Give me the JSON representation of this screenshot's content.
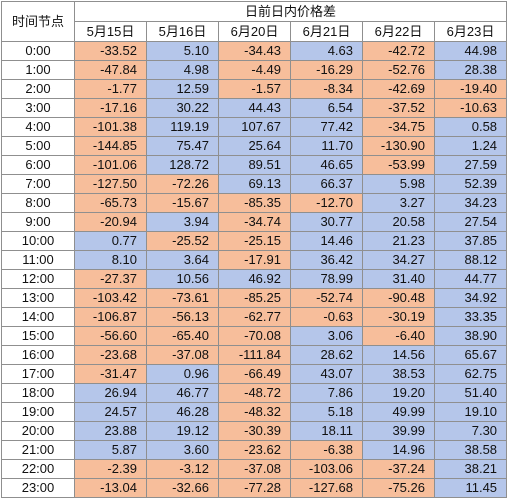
{
  "header": {
    "time_label": "时间节点",
    "group_title": "日前日内价格差",
    "dates": [
      "5月15日",
      "5月16日",
      "6月20日",
      "6月21日",
      "6月22日",
      "6月23日"
    ]
  },
  "colors": {
    "negative": "#f7be9b",
    "positive": "#b5c6ea",
    "grid": "#8f8f8f"
  },
  "rows": [
    {
      "time": "0:00",
      "values": [
        "-33.52",
        "5.10",
        "-34.43",
        "4.63",
        "-42.72",
        "44.98"
      ]
    },
    {
      "time": "1:00",
      "values": [
        "-47.84",
        "4.98",
        "-4.49",
        "-16.29",
        "-52.76",
        "28.38"
      ]
    },
    {
      "time": "2:00",
      "values": [
        "-1.77",
        "12.59",
        "-1.57",
        "-8.34",
        "-42.69",
        "-19.40"
      ]
    },
    {
      "time": "3:00",
      "values": [
        "-17.16",
        "30.22",
        "44.43",
        "6.54",
        "-37.52",
        "-10.63"
      ]
    },
    {
      "time": "4:00",
      "values": [
        "-101.38",
        "119.19",
        "107.67",
        "77.42",
        "-34.75",
        "0.58"
      ]
    },
    {
      "time": "5:00",
      "values": [
        "-144.85",
        "75.47",
        "25.64",
        "11.70",
        "-130.90",
        "1.24"
      ]
    },
    {
      "time": "6:00",
      "values": [
        "-101.06",
        "128.72",
        "89.51",
        "46.65",
        "-53.99",
        "27.59"
      ]
    },
    {
      "time": "7:00",
      "values": [
        "-127.50",
        "-72.26",
        "69.13",
        "66.37",
        "5.98",
        "52.39"
      ]
    },
    {
      "time": "8:00",
      "values": [
        "-65.73",
        "-15.67",
        "-85.35",
        "-12.70",
        "3.27",
        "34.23"
      ]
    },
    {
      "time": "9:00",
      "values": [
        "-20.94",
        "3.94",
        "-34.74",
        "30.77",
        "20.58",
        "27.54"
      ]
    },
    {
      "time": "10:00",
      "values": [
        "0.77",
        "-25.52",
        "-25.15",
        "14.46",
        "21.23",
        "37.85"
      ]
    },
    {
      "time": "11:00",
      "values": [
        "8.10",
        "3.64",
        "-17.91",
        "36.42",
        "34.27",
        "88.12"
      ]
    },
    {
      "time": "12:00",
      "values": [
        "-27.37",
        "10.56",
        "46.92",
        "78.99",
        "31.40",
        "44.77"
      ]
    },
    {
      "time": "13:00",
      "values": [
        "-103.42",
        "-73.61",
        "-85.25",
        "-52.74",
        "-90.48",
        "34.92"
      ]
    },
    {
      "time": "14:00",
      "values": [
        "-106.87",
        "-56.13",
        "-62.77",
        "-0.63",
        "-30.19",
        "33.35"
      ]
    },
    {
      "time": "15:00",
      "values": [
        "-56.60",
        "-65.40",
        "-70.08",
        "3.06",
        "-6.40",
        "38.90"
      ]
    },
    {
      "time": "16:00",
      "values": [
        "-23.68",
        "-37.08",
        "-111.84",
        "28.62",
        "14.56",
        "65.67"
      ]
    },
    {
      "time": "17:00",
      "values": [
        "-31.47",
        "0.96",
        "-66.49",
        "43.07",
        "38.53",
        "62.75"
      ]
    },
    {
      "time": "18:00",
      "values": [
        "26.94",
        "46.77",
        "-48.72",
        "7.86",
        "19.20",
        "51.40"
      ]
    },
    {
      "time": "19:00",
      "values": [
        "24.57",
        "46.28",
        "-48.32",
        "5.18",
        "49.99",
        "19.10"
      ]
    },
    {
      "time": "20:00",
      "values": [
        "23.88",
        "19.12",
        "-30.39",
        "18.11",
        "39.99",
        "7.30"
      ]
    },
    {
      "time": "21:00",
      "values": [
        "5.87",
        "3.60",
        "-23.62",
        "-6.38",
        "14.96",
        "38.58"
      ]
    },
    {
      "time": "22:00",
      "values": [
        "-2.39",
        "-3.12",
        "-37.08",
        "-103.06",
        "-37.24",
        "38.21"
      ]
    },
    {
      "time": "23:00",
      "values": [
        "-13.04",
        "-32.66",
        "-77.28",
        "-127.68",
        "-75.26",
        "11.45"
      ]
    }
  ]
}
